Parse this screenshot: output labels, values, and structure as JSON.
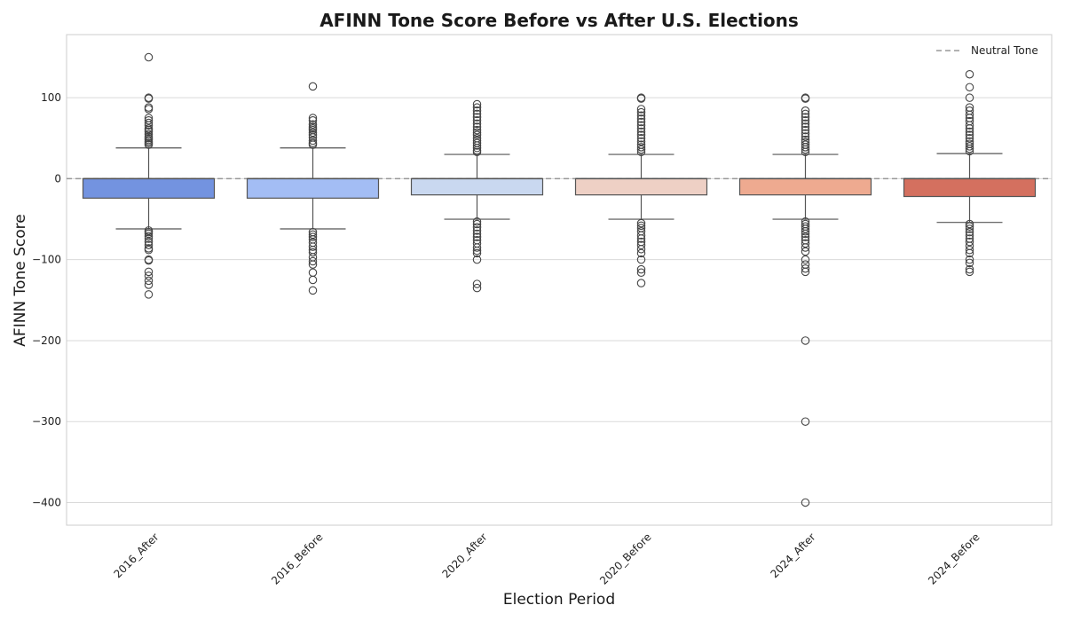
{
  "chart_data": {
    "type": "box",
    "title": "AFINN Tone Score Before vs After U.S. Elections",
    "xlabel": "Election Period",
    "ylabel": "AFINN Tone Score",
    "ylim": [
      -428,
      178
    ],
    "yticks": [
      100,
      0,
      -100,
      -200,
      -300,
      -400
    ],
    "ytick_labels": [
      "100",
      "0",
      "−100",
      "−200",
      "−300",
      "−400"
    ],
    "grid": true,
    "legend": {
      "placement": "top-right",
      "entries": [
        {
          "label": "Neutral Tone",
          "style": "dashed",
          "color": "#999999"
        }
      ]
    },
    "reference_line": {
      "y": 0,
      "label": "Neutral Tone",
      "color": "#999999"
    },
    "categories": [
      "2016_After",
      "2016_Before",
      "2020_After",
      "2020_Before",
      "2024_After",
      "2024_Before"
    ],
    "boxes": [
      {
        "category": "2016_After",
        "color": "#7393e0",
        "q1": -24,
        "median": 0,
        "q3": 0,
        "whisker_low": -62,
        "whisker_high": 38,
        "outliers": [
          150,
          100,
          99,
          88,
          86,
          75,
          72,
          69,
          66,
          62,
          60,
          58,
          55,
          52,
          50,
          48,
          46,
          44,
          42,
          -64,
          -66,
          -68,
          -71,
          -74,
          -78,
          -82,
          -86,
          -88,
          -100,
          -101,
          -115,
          -120,
          -126,
          -131,
          -143
        ]
      },
      {
        "category": "2016_Before",
        "color": "#a3bdf4",
        "q1": -24,
        "median": 0,
        "q3": 0,
        "whisker_low": -62,
        "whisker_high": 38,
        "outliers": [
          114,
          75,
          72,
          67,
          64,
          62,
          60,
          57,
          54,
          51,
          47,
          44,
          42,
          -66,
          -69,
          -72,
          -75,
          -79,
          -84,
          -88,
          -91,
          -97,
          -102,
          -106,
          -116,
          -125,
          -138
        ]
      },
      {
        "category": "2020_After",
        "color": "#c9d8f0",
        "q1": -20,
        "median": 0,
        "q3": 0,
        "whisker_low": -50,
        "whisker_high": 30,
        "outliers": [
          92,
          88,
          84,
          80,
          76,
          72,
          68,
          64,
          60,
          57,
          54,
          50,
          47,
          44,
          41,
          38,
          35,
          33,
          -53,
          -56,
          -60,
          -64,
          -68,
          -72,
          -76,
          -80,
          -85,
          -89,
          -92,
          -100,
          -130,
          -135
        ]
      },
      {
        "category": "2020_Before",
        "color": "#eed0c5",
        "q1": -20,
        "median": 0,
        "q3": 0,
        "whisker_low": -50,
        "whisker_high": 30,
        "outliers": [
          100,
          99,
          86,
          82,
          78,
          74,
          70,
          66,
          62,
          58,
          54,
          50,
          46,
          42,
          39,
          36,
          33,
          -55,
          -58,
          -61,
          -65,
          -70,
          -74,
          -78,
          -82,
          -87,
          -92,
          -100,
          -112,
          -116,
          -129
        ]
      },
      {
        "category": "2024_After",
        "color": "#eeaa90",
        "q1": -20,
        "median": 0,
        "q3": 0,
        "whisker_low": -50,
        "whisker_high": 30,
        "outliers": [
          100,
          99,
          84,
          80,
          76,
          72,
          68,
          64,
          60,
          56,
          52,
          48,
          45,
          42,
          39,
          36,
          33,
          -53,
          -56,
          -59,
          -62,
          -65,
          -68,
          -72,
          -76,
          -80,
          -85,
          -90,
          -100,
          -106,
          -111,
          -115,
          -200,
          -300,
          -400
        ]
      },
      {
        "category": "2024_Before",
        "color": "#d4705f",
        "q1": -22,
        "median": 0,
        "q3": 0,
        "whisker_low": -54,
        "whisker_high": 31,
        "outliers": [
          129,
          113,
          100,
          88,
          84,
          79,
          75,
          71,
          66,
          62,
          58,
          54,
          50,
          46,
          43,
          40,
          37,
          34,
          -56,
          -59,
          -62,
          -66,
          -70,
          -74,
          -78,
          -83,
          -88,
          -92,
          -100,
          -104,
          -112,
          -115
        ]
      }
    ]
  }
}
